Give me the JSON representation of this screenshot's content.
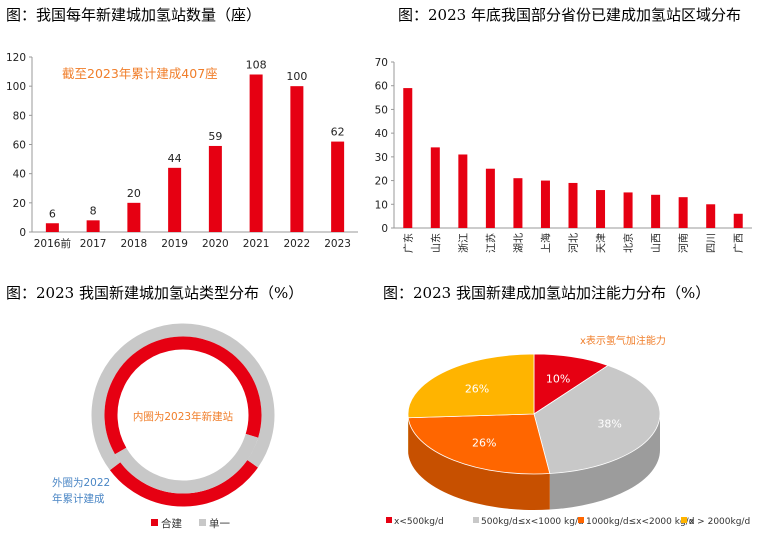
{
  "titles": {
    "tl": "图：我国每年新建城加氢站数量（座）",
    "tr": "图：2023 年底我国部分省份已建成加氢站区域分布",
    "bl": "图：2023 我国新建城加氢站类型分布（%）",
    "br": "图：2023 我国新建成加氢站加注能力分布（%）"
  },
  "colors": {
    "red": "#e60012",
    "grey": "#c8c8c8",
    "orange": "#ff6600",
    "amber": "#ffb400",
    "annot_orange": "#f07e2a",
    "annot_blue": "#4a86c5"
  },
  "chart_data": [
    {
      "type": "bar",
      "categories": [
        "2016前",
        "2017",
        "2018",
        "2019",
        "2020",
        "2021",
        "2022",
        "2023"
      ],
      "values": [
        6,
        8,
        20,
        44,
        59,
        108,
        100,
        62
      ],
      "ylim": [
        0,
        120
      ],
      "yticks": [
        0,
        20,
        40,
        60,
        80,
        100,
        120
      ],
      "annotation": "截至2023年累计建成407座",
      "grid": false
    },
    {
      "type": "bar",
      "categories": [
        "广东",
        "山东",
        "浙江",
        "江苏",
        "湖北",
        "上海",
        "河北",
        "天津",
        "北京",
        "山西",
        "河南",
        "四川",
        "广西"
      ],
      "values": [
        59,
        34,
        31,
        25,
        21,
        20,
        19,
        16,
        15,
        14,
        13,
        10,
        6
      ],
      "ylim": [
        0,
        70
      ],
      "yticks": [
        0,
        10,
        20,
        30,
        40,
        50,
        60,
        70
      ],
      "grid": false
    },
    {
      "type": "pie",
      "style": "double-ring",
      "legend": [
        "合建",
        "单一"
      ],
      "inner_label": "内圈为2023年新建站",
      "outer_label_line1": "外圈为2022",
      "outer_label_line2": "年累计建成",
      "inner_ring": {
        "合建": 63,
        "单一": 37
      },
      "outer_ring": {
        "合建": 30,
        "单一": 70
      }
    },
    {
      "type": "pie",
      "style": "3d",
      "annotation": "x表示氢气加注能力",
      "labels": [
        "x<500kg/d",
        "500kg/d≤x<1000 kg/d",
        "1000kg/d≤x<2000 kg/d",
        "x > 2000kg/d"
      ],
      "values": [
        10,
        38,
        26,
        26
      ],
      "value_labels": [
        "10%",
        "38%",
        "26%",
        "26%"
      ]
    }
  ]
}
